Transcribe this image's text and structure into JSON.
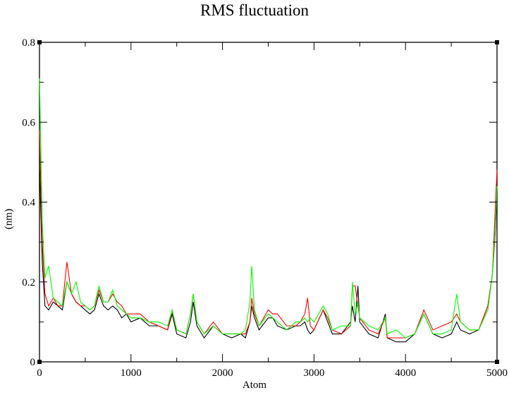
{
  "chart_data": {
    "type": "line",
    "title": "RMS fluctuation",
    "xlabel": "Atom",
    "ylabel": "(nm)",
    "xlim": [
      0,
      5000
    ],
    "ylim": [
      0,
      0.8
    ],
    "xticks": [
      0,
      1000,
      2000,
      3000,
      4000,
      5000
    ],
    "yticks": [
      0,
      0.2,
      0.4,
      0.6,
      0.8
    ],
    "xtick_labels": [
      "0",
      "1000",
      "2000",
      "3000",
      "4000",
      "5000"
    ],
    "ytick_labels": [
      "0",
      "0.2",
      "0.4",
      "0.6",
      "0.8"
    ],
    "grid": false,
    "legend": null,
    "x": [
      0,
      30,
      60,
      100,
      150,
      200,
      250,
      300,
      350,
      400,
      450,
      500,
      550,
      600,
      650,
      700,
      750,
      800,
      850,
      900,
      950,
      1000,
      1100,
      1200,
      1300,
      1400,
      1450,
      1500,
      1600,
      1650,
      1680,
      1720,
      1800,
      1900,
      2000,
      2100,
      2200,
      2250,
      2300,
      2320,
      2350,
      2400,
      2500,
      2550,
      2600,
      2700,
      2800,
      2850,
      2900,
      2930,
      2960,
      3000,
      3100,
      3150,
      3200,
      3300,
      3400,
      3420,
      3450,
      3480,
      3500,
      3600,
      3700,
      3780,
      3800,
      3900,
      4000,
      4100,
      4200,
      4300,
      4400,
      4500,
      4560,
      4600,
      4700,
      4800,
      4900,
      4950,
      4980,
      5000
    ],
    "series": [
      {
        "name": "black",
        "color": "#000000",
        "values": [
          0.5,
          0.25,
          0.14,
          0.13,
          0.15,
          0.14,
          0.13,
          0.2,
          0.17,
          0.15,
          0.14,
          0.13,
          0.12,
          0.13,
          0.17,
          0.14,
          0.13,
          0.14,
          0.13,
          0.11,
          0.12,
          0.1,
          0.11,
          0.09,
          0.09,
          0.08,
          0.12,
          0.07,
          0.06,
          0.1,
          0.15,
          0.09,
          0.06,
          0.09,
          0.07,
          0.06,
          0.07,
          0.06,
          0.1,
          0.14,
          0.11,
          0.08,
          0.11,
          0.11,
          0.09,
          0.08,
          0.09,
          0.09,
          0.1,
          0.08,
          0.07,
          0.08,
          0.13,
          0.1,
          0.07,
          0.07,
          0.1,
          0.14,
          0.1,
          0.19,
          0.1,
          0.07,
          0.06,
          0.12,
          0.06,
          0.05,
          0.05,
          0.07,
          0.12,
          0.07,
          0.06,
          0.07,
          0.1,
          0.08,
          0.07,
          0.08,
          0.14,
          0.22,
          0.32,
          0.42
        ]
      },
      {
        "name": "red",
        "color": "#ff0000",
        "values": [
          0.58,
          0.3,
          0.17,
          0.14,
          0.16,
          0.14,
          0.14,
          0.25,
          0.17,
          0.15,
          0.14,
          0.14,
          0.13,
          0.14,
          0.18,
          0.15,
          0.15,
          0.17,
          0.15,
          0.14,
          0.12,
          0.12,
          0.12,
          0.1,
          0.09,
          0.08,
          0.13,
          0.08,
          0.07,
          0.12,
          0.17,
          0.1,
          0.07,
          0.1,
          0.07,
          0.07,
          0.07,
          0.07,
          0.1,
          0.16,
          0.12,
          0.09,
          0.13,
          0.12,
          0.12,
          0.09,
          0.09,
          0.1,
          0.12,
          0.16,
          0.09,
          0.08,
          0.13,
          0.11,
          0.08,
          0.07,
          0.09,
          0.19,
          0.19,
          0.14,
          0.11,
          0.08,
          0.07,
          0.11,
          0.06,
          0.06,
          0.06,
          0.07,
          0.13,
          0.08,
          0.09,
          0.1,
          0.12,
          0.1,
          0.08,
          0.08,
          0.14,
          0.22,
          0.38,
          0.48
        ]
      },
      {
        "name": "green",
        "color": "#00ff00",
        "values": [
          0.71,
          0.35,
          0.21,
          0.24,
          0.16,
          0.15,
          0.14,
          0.2,
          0.17,
          0.2,
          0.15,
          0.14,
          0.13,
          0.14,
          0.19,
          0.15,
          0.15,
          0.18,
          0.14,
          0.13,
          0.12,
          0.11,
          0.11,
          0.1,
          0.1,
          0.09,
          0.13,
          0.08,
          0.07,
          0.12,
          0.17,
          0.1,
          0.07,
          0.09,
          0.07,
          0.07,
          0.07,
          0.08,
          0.15,
          0.24,
          0.13,
          0.09,
          0.12,
          0.11,
          0.1,
          0.08,
          0.1,
          0.1,
          0.11,
          0.1,
          0.11,
          0.1,
          0.14,
          0.12,
          0.08,
          0.09,
          0.09,
          0.2,
          0.12,
          0.15,
          0.11,
          0.09,
          0.08,
          0.11,
          0.07,
          0.08,
          0.06,
          0.07,
          0.12,
          0.07,
          0.07,
          0.08,
          0.17,
          0.1,
          0.08,
          0.08,
          0.13,
          0.22,
          0.33,
          0.44
        ]
      }
    ]
  }
}
